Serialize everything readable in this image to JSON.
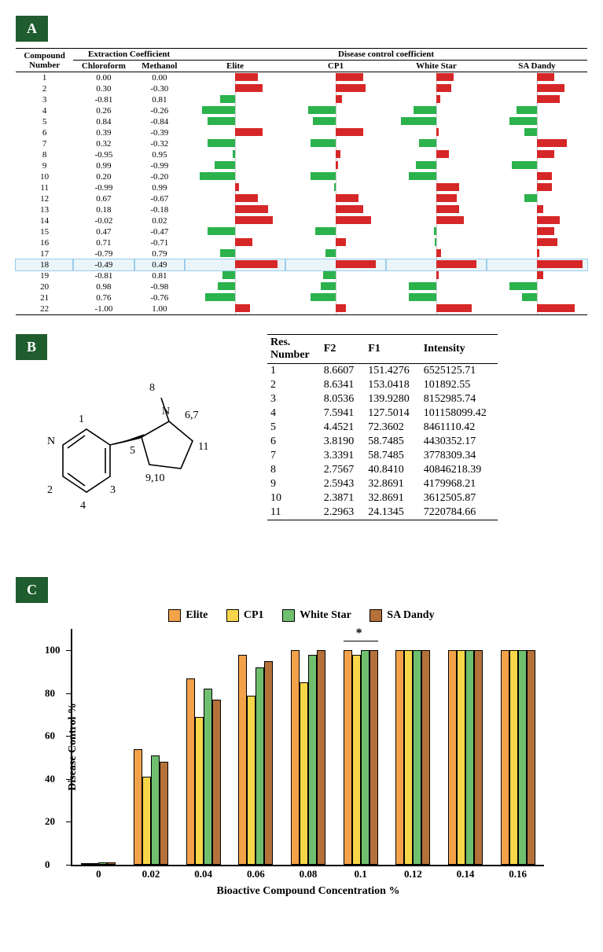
{
  "colors": {
    "panel_bg": "#1f5c2e",
    "bar_green": "#2bb24c",
    "bar_red": "#d62728",
    "series": {
      "elite": "#f4a24a",
      "cp1": "#f7d64a",
      "white_star": "#6fbf6f",
      "sa_dandy": "#b5713a"
    }
  },
  "panelA": {
    "label": "A",
    "headers": {
      "compound": "Compound\nNumber",
      "extraction": "Extraction Coefficient",
      "chloroform": "Chloroform",
      "methanol": "Methanol",
      "disease": "Disease control coefficient",
      "cultivars": [
        "Elite",
        "CP1",
        "White Star",
        "SA Dandy"
      ]
    },
    "highlight_row": 18,
    "rows": [
      {
        "n": 1,
        "chl": "0.00",
        "met": "0.00",
        "bars": {
          "Elite": 0.45,
          "CP1": 0.55,
          "White Star": 0.35,
          "SA Dandy": 0.35
        }
      },
      {
        "n": 2,
        "chl": "0.30",
        "met": "-0.30",
        "bars": {
          "Elite": 0.55,
          "CP1": 0.6,
          "White Star": 0.3,
          "SA Dandy": 0.55
        }
      },
      {
        "n": 3,
        "chl": "-0.81",
        "met": "0.81",
        "bars": {
          "Elite": -0.3,
          "CP1": 0.12,
          "White Star": 0.08,
          "SA Dandy": 0.45
        }
      },
      {
        "n": 4,
        "chl": "0.26",
        "met": "-0.26",
        "bars": {
          "Elite": -0.65,
          "CP1": -0.55,
          "White Star": -0.45,
          "SA Dandy": -0.4
        }
      },
      {
        "n": 5,
        "chl": "0.84",
        "met": "-0.84",
        "bars": {
          "Elite": -0.55,
          "CP1": -0.45,
          "White Star": -0.7,
          "SA Dandy": -0.55
        }
      },
      {
        "n": 6,
        "chl": "0.39",
        "met": "-0.39",
        "bars": {
          "Elite": 0.55,
          "CP1": 0.55,
          "White Star": 0.04,
          "SA Dandy": -0.25
        }
      },
      {
        "n": 7,
        "chl": "0.32",
        "met": "-0.32",
        "bars": {
          "Elite": -0.55,
          "CP1": -0.5,
          "White Star": -0.35,
          "SA Dandy": 0.6
        }
      },
      {
        "n": 8,
        "chl": "-0.95",
        "met": "0.95",
        "bars": {
          "Elite": -0.05,
          "CP1": 0.1,
          "White Star": 0.25,
          "SA Dandy": 0.35
        }
      },
      {
        "n": 9,
        "chl": "0.99",
        "met": "-0.99",
        "bars": {
          "Elite": -0.4,
          "CP1": 0.05,
          "White Star": -0.4,
          "SA Dandy": -0.5
        }
      },
      {
        "n": 10,
        "chl": "0.20",
        "met": "-0.20",
        "bars": {
          "Elite": -0.7,
          "CP1": -0.5,
          "White Star": -0.55,
          "SA Dandy": 0.3
        }
      },
      {
        "n": 11,
        "chl": "-0.99",
        "met": "0.99",
        "bars": {
          "Elite": 0.08,
          "CP1": -0.03,
          "White Star": 0.45,
          "SA Dandy": 0.3
        }
      },
      {
        "n": 12,
        "chl": "0.67",
        "met": "-0.67",
        "bars": {
          "Elite": 0.45,
          "CP1": 0.45,
          "White Star": 0.4,
          "SA Dandy": -0.25
        }
      },
      {
        "n": 13,
        "chl": "0.18",
        "met": "-0.18",
        "bars": {
          "Elite": 0.65,
          "CP1": 0.55,
          "White Star": 0.45,
          "SA Dandy": 0.12
        }
      },
      {
        "n": 14,
        "chl": "-0.02",
        "met": "0.02",
        "bars": {
          "Elite": 0.75,
          "CP1": 0.7,
          "White Star": 0.55,
          "SA Dandy": 0.45
        }
      },
      {
        "n": 15,
        "chl": "0.47",
        "met": "-0.47",
        "bars": {
          "Elite": -0.55,
          "CP1": -0.4,
          "White Star": -0.04,
          "SA Dandy": 0.35
        }
      },
      {
        "n": 16,
        "chl": "0.71",
        "met": "-0.71",
        "bars": {
          "Elite": 0.35,
          "CP1": 0.2,
          "White Star": -0.03,
          "SA Dandy": 0.4
        }
      },
      {
        "n": 17,
        "chl": "-0.79",
        "met": "0.79",
        "bars": {
          "Elite": -0.3,
          "CP1": -0.2,
          "White Star": 0.1,
          "SA Dandy": 0.04
        }
      },
      {
        "n": 18,
        "chl": "-0.49",
        "met": "0.49",
        "bars": {
          "Elite": 0.85,
          "CP1": 0.8,
          "White Star": 0.8,
          "SA Dandy": 0.9
        }
      },
      {
        "n": 19,
        "chl": "-0.81",
        "met": "0.81",
        "bars": {
          "Elite": -0.25,
          "CP1": -0.25,
          "White Star": 0.04,
          "SA Dandy": 0.12
        }
      },
      {
        "n": 20,
        "chl": "0.98",
        "met": "-0.98",
        "bars": {
          "Elite": -0.35,
          "CP1": -0.3,
          "White Star": -0.55,
          "SA Dandy": -0.55
        }
      },
      {
        "n": 21,
        "chl": "0.76",
        "met": "-0.76",
        "bars": {
          "Elite": -0.6,
          "CP1": -0.5,
          "White Star": -0.55,
          "SA Dandy": -0.3
        }
      },
      {
        "n": 22,
        "chl": "-1.00",
        "met": "1.00",
        "bars": {
          "Elite": 0.3,
          "CP1": 0.2,
          "White Star": 0.7,
          "SA Dandy": 0.75
        }
      }
    ]
  },
  "panelB": {
    "label": "B",
    "molecule_labels": {
      "1": "1",
      "2": "2",
      "3": "3",
      "4": "4",
      "5": "5",
      "6_7": "6,7",
      "8": "8",
      "9_10": "9,10",
      "11": "11",
      "N1": "N",
      "N2": "N"
    },
    "headers": {
      "res": "Res.\nNumber",
      "f2": "F2",
      "f1": "F1",
      "int": "Intensity"
    },
    "rows": [
      {
        "n": 1,
        "f2": "8.6607",
        "f1": "151.4276",
        "int": "6525125.71"
      },
      {
        "n": 2,
        "f2": "8.6341",
        "f1": "153.0418",
        "int": "101892.55"
      },
      {
        "n": 3,
        "f2": "8.0536",
        "f1": "139.9280",
        "int": "8152985.74"
      },
      {
        "n": 4,
        "f2": "7.5941",
        "f1": "127.5014",
        "int": "101158099.42"
      },
      {
        "n": 5,
        "f2": "4.4521",
        "f1": "72.3602",
        "int": "8461110.42"
      },
      {
        "n": 6,
        "f2": "3.8190",
        "f1": "58.7485",
        "int": "4430352.17"
      },
      {
        "n": 7,
        "f2": "3.3391",
        "f1": "58.7485",
        "int": "3778309.34"
      },
      {
        "n": 8,
        "f2": "2.7567",
        "f1": "40.8410",
        "int": "40846218.39"
      },
      {
        "n": 9,
        "f2": "2.5943",
        "f1": "32.8691",
        "int": "4179968.21"
      },
      {
        "n": 10,
        "f2": "2.3871",
        "f1": "32.8691",
        "int": "3612505.87"
      },
      {
        "n": 11,
        "f2": "2.2963",
        "f1": "24.1345",
        "int": "7220784.66"
      }
    ]
  },
  "panelC": {
    "label": "C",
    "legend": [
      "Elite",
      "CP1",
      "White Star",
      "SA Dandy"
    ],
    "y_label": "Disease Control %",
    "x_label": "Bioactive Compound Concentration %",
    "y_ticks": [
      0,
      20,
      40,
      60,
      80,
      100
    ],
    "x_ticks": [
      "0",
      "0.02",
      "0.04",
      "0.06",
      "0.08",
      "0.1",
      "0.12",
      "0.14",
      "0.16"
    ],
    "y_max": 110,
    "significance": {
      "at": "0.1",
      "mark": "*"
    },
    "data": {
      "0": {
        "Elite": 0.5,
        "CP1": 0.5,
        "White Star": 1,
        "SA Dandy": 1
      },
      "0.02": {
        "Elite": 54,
        "CP1": 41,
        "White Star": 51,
        "SA Dandy": 48
      },
      "0.04": {
        "Elite": 87,
        "CP1": 69,
        "White Star": 82,
        "SA Dandy": 77
      },
      "0.06": {
        "Elite": 98,
        "CP1": 79,
        "White Star": 92,
        "SA Dandy": 95
      },
      "0.08": {
        "Elite": 100,
        "CP1": 85,
        "White Star": 98,
        "SA Dandy": 100
      },
      "0.1": {
        "Elite": 100,
        "CP1": 98,
        "White Star": 100,
        "SA Dandy": 100
      },
      "0.12": {
        "Elite": 100,
        "CP1": 100,
        "White Star": 100,
        "SA Dandy": 100
      },
      "0.14": {
        "Elite": 100,
        "CP1": 100,
        "White Star": 100,
        "SA Dandy": 100
      },
      "0.16": {
        "Elite": 100,
        "CP1": 100,
        "White Star": 100,
        "SA Dandy": 100
      }
    }
  }
}
